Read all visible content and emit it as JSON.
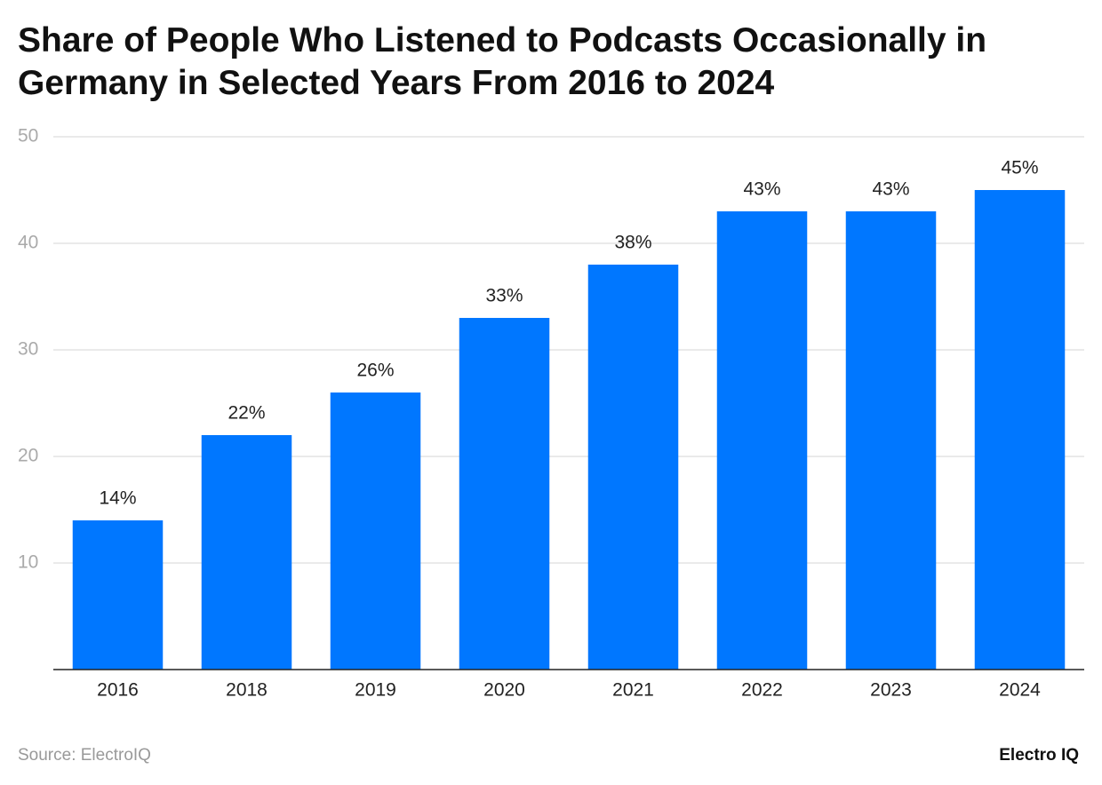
{
  "chart_data": {
    "type": "bar",
    "title": "Share of People Who Listened to Podcasts Occasionally in Germany in Selected Years From 2016 to 2024",
    "categories": [
      "2016",
      "2018",
      "2019",
      "2020",
      "2021",
      "2022",
      "2023",
      "2024"
    ],
    "values": [
      14,
      22,
      26,
      33,
      38,
      43,
      43,
      45
    ],
    "value_labels": [
      "14%",
      "22%",
      "26%",
      "33%",
      "38%",
      "43%",
      "43%",
      "45%"
    ],
    "color": "#0077ff",
    "ylim": [
      0,
      50
    ],
    "yticks": [
      10,
      20,
      30,
      40,
      50
    ],
    "grid": true
  },
  "footer": {
    "source": "Source: ElectroIQ",
    "brand": "Electro IQ"
  }
}
